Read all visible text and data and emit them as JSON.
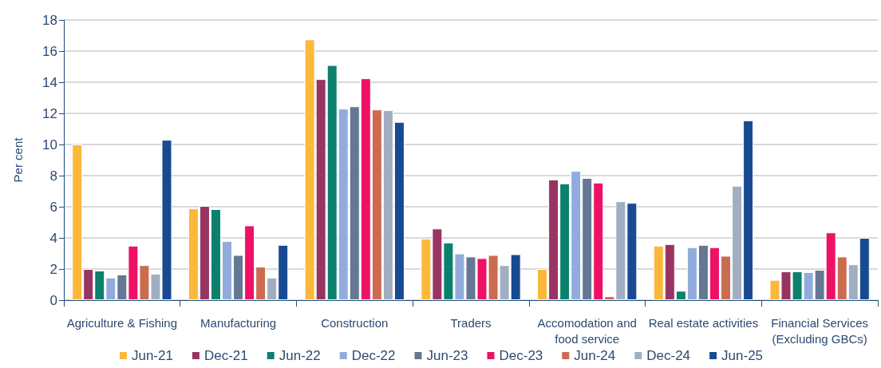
{
  "chart_data": {
    "type": "bar",
    "ylabel": "Per cent",
    "categories": [
      "Agriculture & Fishing",
      "Manufacturing",
      "Construction",
      "Traders",
      "Accomodation and\nfood service",
      "Real estate activities",
      "Financial Services\n(Excluding GBCs)"
    ],
    "series": [
      {
        "name": "Jun-21",
        "color": "#fdb73a",
        "values": [
          10.0,
          5.9,
          16.75,
          3.95,
          2.0,
          3.5,
          1.3
        ]
      },
      {
        "name": "Dec-21",
        "color": "#983462",
        "values": [
          2.0,
          6.05,
          14.2,
          4.6,
          7.75,
          3.6,
          1.85
        ]
      },
      {
        "name": "Jun-22",
        "color": "#0b816d",
        "values": [
          1.9,
          5.85,
          15.1,
          3.7,
          7.5,
          0.6,
          1.85
        ]
      },
      {
        "name": "Dec-22",
        "color": "#91acdc",
        "values": [
          1.45,
          3.8,
          12.3,
          3.0,
          8.3,
          3.4,
          1.8
        ]
      },
      {
        "name": "Jun-23",
        "color": "#647894",
        "values": [
          1.65,
          2.9,
          12.45,
          2.8,
          7.85,
          3.55,
          1.95
        ]
      },
      {
        "name": "Dec-23",
        "color": "#ee1166",
        "values": [
          3.5,
          4.8,
          14.25,
          2.7,
          7.55,
          3.4,
          4.35
        ]
      },
      {
        "name": "Jun-24",
        "color": "#cb6c50",
        "values": [
          2.25,
          2.15,
          12.25,
          2.9,
          0.25,
          2.85,
          2.8
        ]
      },
      {
        "name": "Dec-24",
        "color": "#a1aec2",
        "values": [
          1.7,
          1.45,
          12.2,
          2.25,
          6.35,
          7.35,
          2.3
        ]
      },
      {
        "name": "Jun-25",
        "color": "#184a92",
        "values": [
          10.3,
          3.55,
          11.45,
          2.95,
          6.25,
          11.55,
          4.0
        ]
      }
    ],
    "ylim": [
      0,
      18
    ],
    "yticks": [
      0,
      2,
      4,
      6,
      8,
      10,
      12,
      14,
      16,
      18
    ],
    "grid": "y",
    "legend": "bottom"
  }
}
